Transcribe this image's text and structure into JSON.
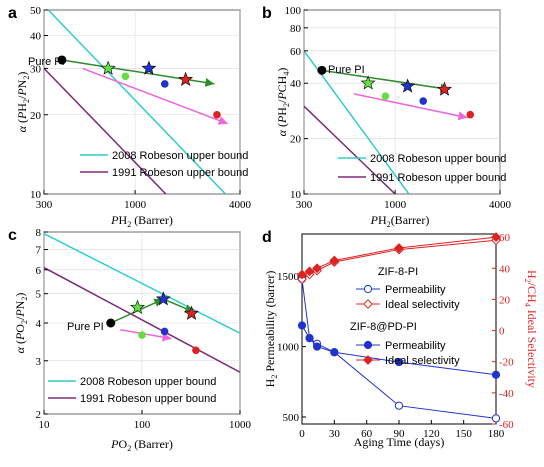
{
  "chart_data": [
    {
      "panel": "a",
      "type": "scatter",
      "xlabel": "PH2 (Barrer)",
      "ylabel": "α (PH2/PN2)",
      "xscale": "log",
      "yscale": "log",
      "xlim": [
        300,
        4000
      ],
      "ylim": [
        10,
        50
      ],
      "xticks": [
        "300",
        "1000",
        "4000"
      ],
      "yticks": [
        "10",
        "20",
        "30",
        "40",
        "50"
      ],
      "annotations": [
        "Pure PI"
      ],
      "legend": {
        "placement": "bottom-right",
        "entries": [
          "2008 Robeson upper bound",
          "1991 Robeson upper bound"
        ]
      },
      "lines": [
        {
          "name": "2008 Robeson upper bound",
          "color": "#33cccc",
          "points": [
            [
              300,
              52
            ],
            [
              3300,
              10
            ]
          ]
        },
        {
          "name": "1991 Robeson upper bound",
          "color": "#7b2a7b",
          "points": [
            [
              300,
              30
            ],
            [
              1500,
              10
            ]
          ]
        }
      ],
      "arrows": [
        {
          "color": "#2e8b2e",
          "from": [
            380,
            32.3
          ],
          "to": [
            2850,
            26.2
          ]
        },
        {
          "color": "#ee66dd",
          "from": [
            500,
            30
          ],
          "to": [
            3400,
            18.5
          ]
        }
      ],
      "points": [
        {
          "x": 380,
          "y": 32.3,
          "color": "#000000",
          "marker": "circle"
        },
        {
          "x": 700,
          "y": 30,
          "color": "#66dd44",
          "marker": "star"
        },
        {
          "x": 880,
          "y": 28,
          "color": "#66dd44",
          "marker": "circle"
        },
        {
          "x": 1200,
          "y": 30,
          "color": "#2233cc",
          "marker": "star"
        },
        {
          "x": 1480,
          "y": 26.2,
          "color": "#2233cc",
          "marker": "circle"
        },
        {
          "x": 1950,
          "y": 27.2,
          "color": "#dd2222",
          "marker": "star"
        },
        {
          "x": 2950,
          "y": 20,
          "color": "#dd2222",
          "marker": "circle"
        }
      ]
    },
    {
      "panel": "b",
      "type": "scatter",
      "xlabel": "PH2(Barrer)",
      "ylabel": "α (PH2/PCH4)",
      "xscale": "log",
      "yscale": "log",
      "xlim": [
        300,
        4000
      ],
      "ylim": [
        10,
        100
      ],
      "xticks": [
        "300",
        "1000",
        "4000"
      ],
      "yticks": [
        "10",
        "20",
        "40",
        "60",
        "80",
        "100"
      ],
      "annotations": [
        "Pure PI"
      ],
      "legend": {
        "placement": "bottom-right",
        "entries": [
          "2008 Robeson upper bound",
          "1991 Robeson upper bound"
        ]
      },
      "lines": [
        {
          "name": "2008 Robeson upper bound",
          "color": "#33cccc",
          "points": [
            [
              300,
              60
            ],
            [
              1200,
              10
            ]
          ]
        },
        {
          "name": "1991 Robeson upper bound",
          "color": "#7b2a7b",
          "points": [
            [
              300,
              30
            ],
            [
              1000,
              10
            ]
          ]
        }
      ],
      "arrows": [
        {
          "color": "#2e8b2e",
          "from": [
            380,
            47
          ],
          "to": [
            2050,
            37
          ]
        },
        {
          "color": "#ee66dd",
          "from": [
            580,
            35
          ],
          "to": [
            2600,
            26
          ]
        }
      ],
      "points": [
        {
          "x": 380,
          "y": 47,
          "color": "#000000",
          "marker": "circle"
        },
        {
          "x": 700,
          "y": 40,
          "color": "#66dd44",
          "marker": "star"
        },
        {
          "x": 880,
          "y": 34,
          "color": "#66dd44",
          "marker": "circle"
        },
        {
          "x": 1180,
          "y": 38.5,
          "color": "#2233cc",
          "marker": "star"
        },
        {
          "x": 1450,
          "y": 32,
          "color": "#2233cc",
          "marker": "circle"
        },
        {
          "x": 1920,
          "y": 37,
          "color": "#dd2222",
          "marker": "star"
        },
        {
          "x": 2700,
          "y": 27,
          "color": "#dd2222",
          "marker": "circle"
        }
      ]
    },
    {
      "panel": "c",
      "type": "scatter",
      "xlabel": "PO2 (Barrer)",
      "ylabel": "α (PO2/PN2)",
      "xscale": "log",
      "yscale": "log",
      "xlim": [
        10,
        1000
      ],
      "ylim": [
        2,
        8
      ],
      "xticks": [
        "10",
        "100",
        "1000"
      ],
      "yticks": [
        "2",
        "3",
        "4",
        "5",
        "6",
        "7",
        "8"
      ],
      "annotations": [
        "Pure PI"
      ],
      "legend": {
        "placement": "bottom-left",
        "entries": [
          "2008 Robeson upper bound",
          "1991 Robeson upper bound"
        ]
      },
      "lines": [
        {
          "name": "2008 Robeson upper bound",
          "color": "#33cccc",
          "points": [
            [
              10,
              7.9
            ],
            [
              1000,
              3.7
            ]
          ]
        },
        {
          "name": "1991 Robeson upper bound",
          "color": "#7b2a7b",
          "points": [
            [
              10,
              6.1
            ],
            [
              1000,
              2.75
            ]
          ]
        }
      ],
      "arrows": [
        {
          "color": "#2e8b2e",
          "from": [
            48,
            4.0
          ],
          "to": [
            165,
            4.8
          ]
        },
        {
          "color": "#2e8b2e",
          "from": [
            165,
            4.8
          ],
          "to": [
            340,
            4.35
          ]
        },
        {
          "color": "#ee66dd",
          "from": [
            60,
            3.8
          ],
          "to": [
            200,
            3.55
          ]
        }
      ],
      "points": [
        {
          "x": 48,
          "y": 4.0,
          "color": "#000000",
          "marker": "circle"
        },
        {
          "x": 90,
          "y": 4.5,
          "color": "#66dd44",
          "marker": "star"
        },
        {
          "x": 100,
          "y": 3.65,
          "color": "#66dd44",
          "marker": "circle"
        },
        {
          "x": 165,
          "y": 4.8,
          "color": "#2233cc",
          "marker": "star"
        },
        {
          "x": 170,
          "y": 3.75,
          "color": "#2233cc",
          "marker": "circle"
        },
        {
          "x": 320,
          "y": 4.3,
          "color": "#dd2222",
          "marker": "star"
        },
        {
          "x": 355,
          "y": 3.25,
          "color": "#dd2222",
          "marker": "circle"
        }
      ]
    },
    {
      "panel": "d",
      "type": "line",
      "xlabel": "Aging Time (days)",
      "ylabel": "H2 Permeability (barrer)",
      "ylabel_right": "H2/CH4 Ideal Selectivity",
      "xlim": [
        0,
        180
      ],
      "ylim": [
        450,
        1800
      ],
      "ylim_right": [
        -60,
        62
      ],
      "xticks": [
        "0",
        "30",
        "60",
        "90",
        "120",
        "150",
        "180"
      ],
      "yticks": [
        "500",
        "1000",
        "1500"
      ],
      "yticks_right": [
        "-60",
        "-40",
        "-20",
        "0",
        "20",
        "40",
        "60"
      ],
      "legend_groups": [
        {
          "title": "ZIF-8-PI",
          "entries": [
            "Permeability",
            "Ideal selectivity"
          ]
        },
        {
          "title": "ZIF-8@PD-PI",
          "entries": [
            "Permeability",
            "Ideal selectivity"
          ]
        }
      ],
      "series": [
        {
          "name": "Permeability",
          "group": "ZIF-8-PI",
          "axis": "left",
          "color": "#2233cc",
          "marker": "open-circle",
          "x": [
            0,
            7,
            14,
            30,
            90,
            180
          ],
          "y": [
            1480,
            1060,
            1020,
            960,
            580,
            490
          ]
        },
        {
          "name": "Ideal selectivity",
          "group": "ZIF-8-PI",
          "axis": "right",
          "color": "#dd2222",
          "marker": "open-diamond",
          "x": [
            0,
            7,
            14,
            30,
            90,
            180
          ],
          "y": [
            33,
            36,
            38.5,
            44,
            52,
            58
          ]
        },
        {
          "name": "Permeability",
          "group": "ZIF-8@PD-PI",
          "axis": "left",
          "color": "#2233cc",
          "marker": "filled-circle",
          "x": [
            0,
            7,
            14,
            30,
            90,
            180
          ],
          "y": [
            1150,
            1060,
            1000,
            960,
            890,
            800
          ]
        },
        {
          "name": "Ideal selectivity",
          "group": "ZIF-8@PD-PI",
          "axis": "right",
          "color": "#dd2222",
          "marker": "filled-diamond",
          "x": [
            0,
            7,
            14,
            30,
            90,
            180
          ],
          "y": [
            36,
            38,
            40,
            45,
            53,
            60
          ]
        }
      ]
    }
  ]
}
